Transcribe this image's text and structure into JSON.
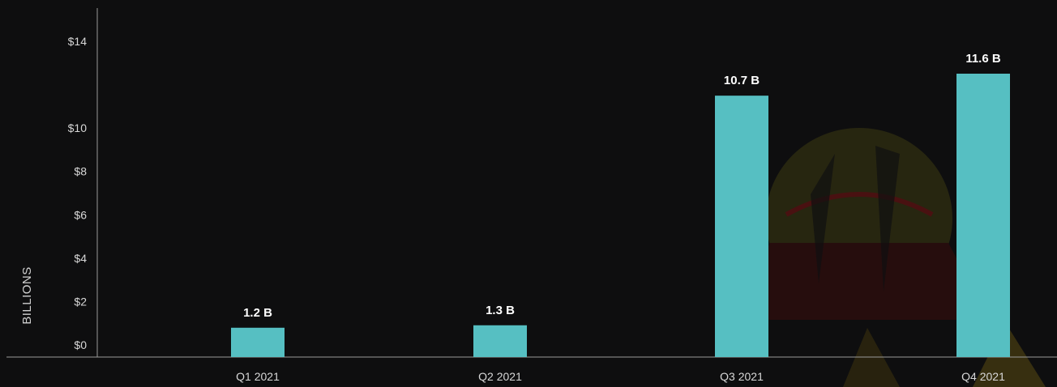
{
  "chart_data": {
    "type": "bar",
    "title": "",
    "xlabel": "",
    "ylabel": "BILLIONS",
    "categories": [
      "Q1 2021",
      "Q2 2021",
      "Q3 2021",
      "Q4 2021"
    ],
    "values": [
      1.2,
      1.3,
      10.7,
      11.6
    ],
    "data_labels": [
      "1.2 B",
      "1.3 B",
      "10.7 B",
      "11.6 B"
    ],
    "yticks": [
      0,
      2,
      4,
      6,
      8,
      10,
      14
    ],
    "ytick_labels": [
      "$0",
      "$2",
      "$4",
      "$6",
      "$8",
      "$10",
      "$14"
    ],
    "ylim": [
      0,
      15
    ],
    "grid": false,
    "legend": "none",
    "colors": {
      "background": "#0e0e0f",
      "bar": "#56bfc2",
      "axis": "#9a9a9a",
      "text": "#d8d8d8",
      "data_label": "#ffffff"
    }
  }
}
